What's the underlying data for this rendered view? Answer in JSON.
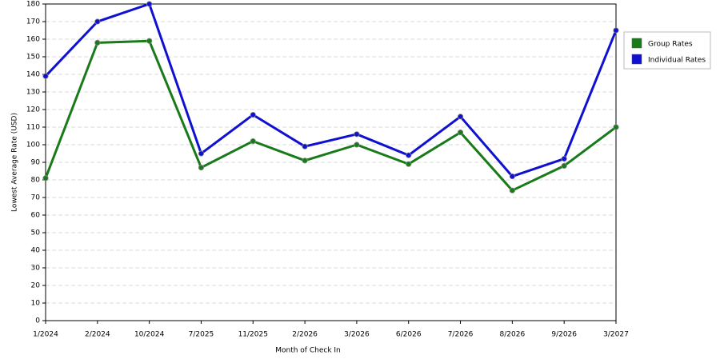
{
  "chart_data": {
    "type": "line",
    "x_label": "Month of Check In",
    "y_label": "Lowest Average Rate (USD)",
    "categories": [
      "1/2024",
      "2/2024",
      "10/2024",
      "7/2025",
      "11/2025",
      "2/2026",
      "3/2026",
      "6/2026",
      "7/2026",
      "8/2026",
      "9/2026",
      "3/2027"
    ],
    "series": [
      {
        "name": "Group Rates",
        "color": "#187a18",
        "values": [
          81,
          158,
          159,
          87,
          102,
          91,
          100,
          89,
          107,
          74,
          88,
          110
        ]
      },
      {
        "name": "Individual Rates",
        "color": "#1010d0",
        "values": [
          139,
          170,
          180,
          95,
          117,
          99,
          106,
          94,
          116,
          82,
          92,
          165
        ]
      }
    ],
    "ylim": [
      0,
      180
    ],
    "yticks": [
      0,
      10,
      20,
      30,
      40,
      50,
      60,
      70,
      80,
      90,
      100,
      110,
      120,
      130,
      140,
      150,
      160,
      170,
      180
    ],
    "grid": true,
    "legend": "right"
  }
}
